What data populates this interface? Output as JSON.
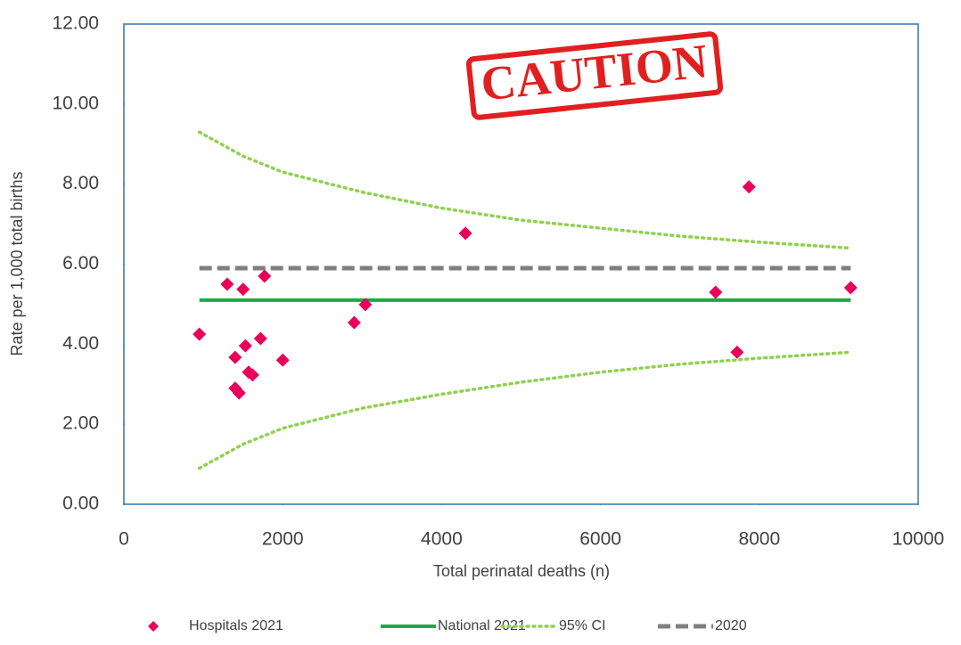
{
  "chart_data": {
    "type": "scatter",
    "x_label": "Total perinatal deaths (n)",
    "y_label": "Rate per 1,000 total births",
    "annotation": "CAUTION",
    "xlim": [
      0,
      10000
    ],
    "xticks": [
      0,
      2000,
      4000,
      6000,
      8000,
      10000
    ],
    "ylim": [
      0,
      12
    ],
    "yticks": [
      {
        "value": 0,
        "label": "0.00"
      },
      {
        "value": 2,
        "label": "2.00"
      },
      {
        "value": 4,
        "label": "4.00"
      },
      {
        "value": 6,
        "label": "6.00"
      },
      {
        "value": 8,
        "label": "8.00"
      },
      {
        "value": 10,
        "label": "10.00"
      },
      {
        "value": 12,
        "label": "12.00"
      }
    ],
    "series": [
      {
        "name": "Hospitals 2021",
        "kind": "scatter",
        "color": "#e8005a",
        "x": [
          950,
          1300,
          1400,
          1400,
          1450,
          1500,
          1530,
          1570,
          1620,
          1720,
          1770,
          2000,
          2900,
          3040,
          4300,
          7450,
          7720,
          7870,
          9150
        ],
        "values": [
          4.25,
          5.5,
          3.67,
          2.9,
          2.78,
          5.37,
          3.96,
          3.3,
          3.23,
          4.14,
          5.7,
          3.6,
          4.54,
          4.99,
          6.77,
          5.3,
          3.8,
          7.93,
          5.41
        ]
      },
      {
        "name": "National 2021",
        "kind": "line",
        "color": "#1aab46",
        "dash": "solid",
        "x": [
          950,
          9150
        ],
        "values": [
          5.1,
          5.1
        ]
      },
      {
        "name": "95% CI",
        "kind": "band",
        "color": "#8fd14f",
        "dash": "dotted",
        "x": [
          950,
          1500,
          2000,
          3000,
          4000,
          5000,
          6000,
          7000,
          8000,
          9150
        ],
        "upper": [
          9.3,
          8.7,
          8.3,
          7.8,
          7.4,
          7.1,
          6.9,
          6.7,
          6.55,
          6.4
        ],
        "lower": [
          0.9,
          1.5,
          1.9,
          2.4,
          2.75,
          3.05,
          3.3,
          3.5,
          3.65,
          3.8
        ]
      },
      {
        "name": "2020",
        "kind": "line",
        "color": "#7f7f7f",
        "dash": "dashed",
        "x": [
          950,
          9150
        ],
        "values": [
          5.9,
          5.9
        ]
      }
    ]
  }
}
